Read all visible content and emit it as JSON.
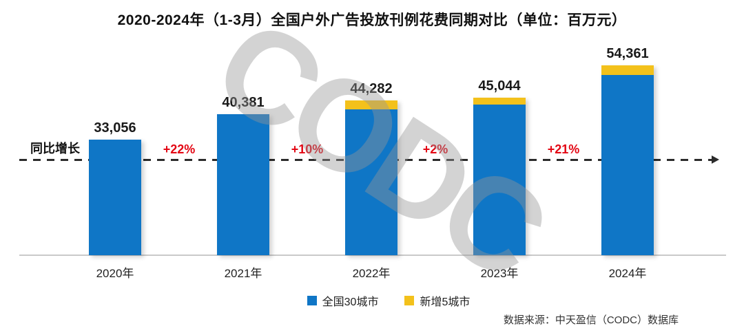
{
  "title": "2020-2024年（1-3月）全国户外广告投放刊例花费同期对比（单位：百万元）",
  "y_axis_label": "同比增长",
  "watermark": "CODC",
  "source": "数据来源：中天盈信（CODC）数据库",
  "colors": {
    "bar_blue": "#0F76C6",
    "bar_yellow": "#F3C11B",
    "growth_red": "#E30613",
    "watermark_gray": "#969696",
    "axis_gray": "#C9C9C9"
  },
  "legend": [
    {
      "label": "全国30城市",
      "color": "#0F76C6"
    },
    {
      "label": "新增5城市",
      "color": "#F3C11B"
    }
  ],
  "chart_data": {
    "type": "bar",
    "stacked": true,
    "categories": [
      "2020年",
      "2021年",
      "2022年",
      "2023年",
      "2024年"
    ],
    "totals": [
      33056,
      40381,
      44282,
      45044,
      54361
    ],
    "total_labels": [
      "33,056",
      "40,381",
      "44,282",
      "45,044",
      "54,361"
    ],
    "series": [
      {
        "name": "全国30城市",
        "color": "#0F76C6",
        "values_estimated": [
          33056,
          40381,
          41720,
          43074,
          51603
        ]
      },
      {
        "name": "新增5城市",
        "color": "#F3C11B",
        "values_estimated": [
          0,
          0,
          2562,
          1970,
          2758
        ]
      }
    ],
    "growth_labels": [
      "+22%",
      "+10%",
      "+2%",
      "+21%"
    ],
    "unit": "百万元",
    "ylim": [
      0,
      58000
    ],
    "grid": false,
    "legend_position": "bottom",
    "reference_line": "同比增长 dashed arrow line"
  }
}
